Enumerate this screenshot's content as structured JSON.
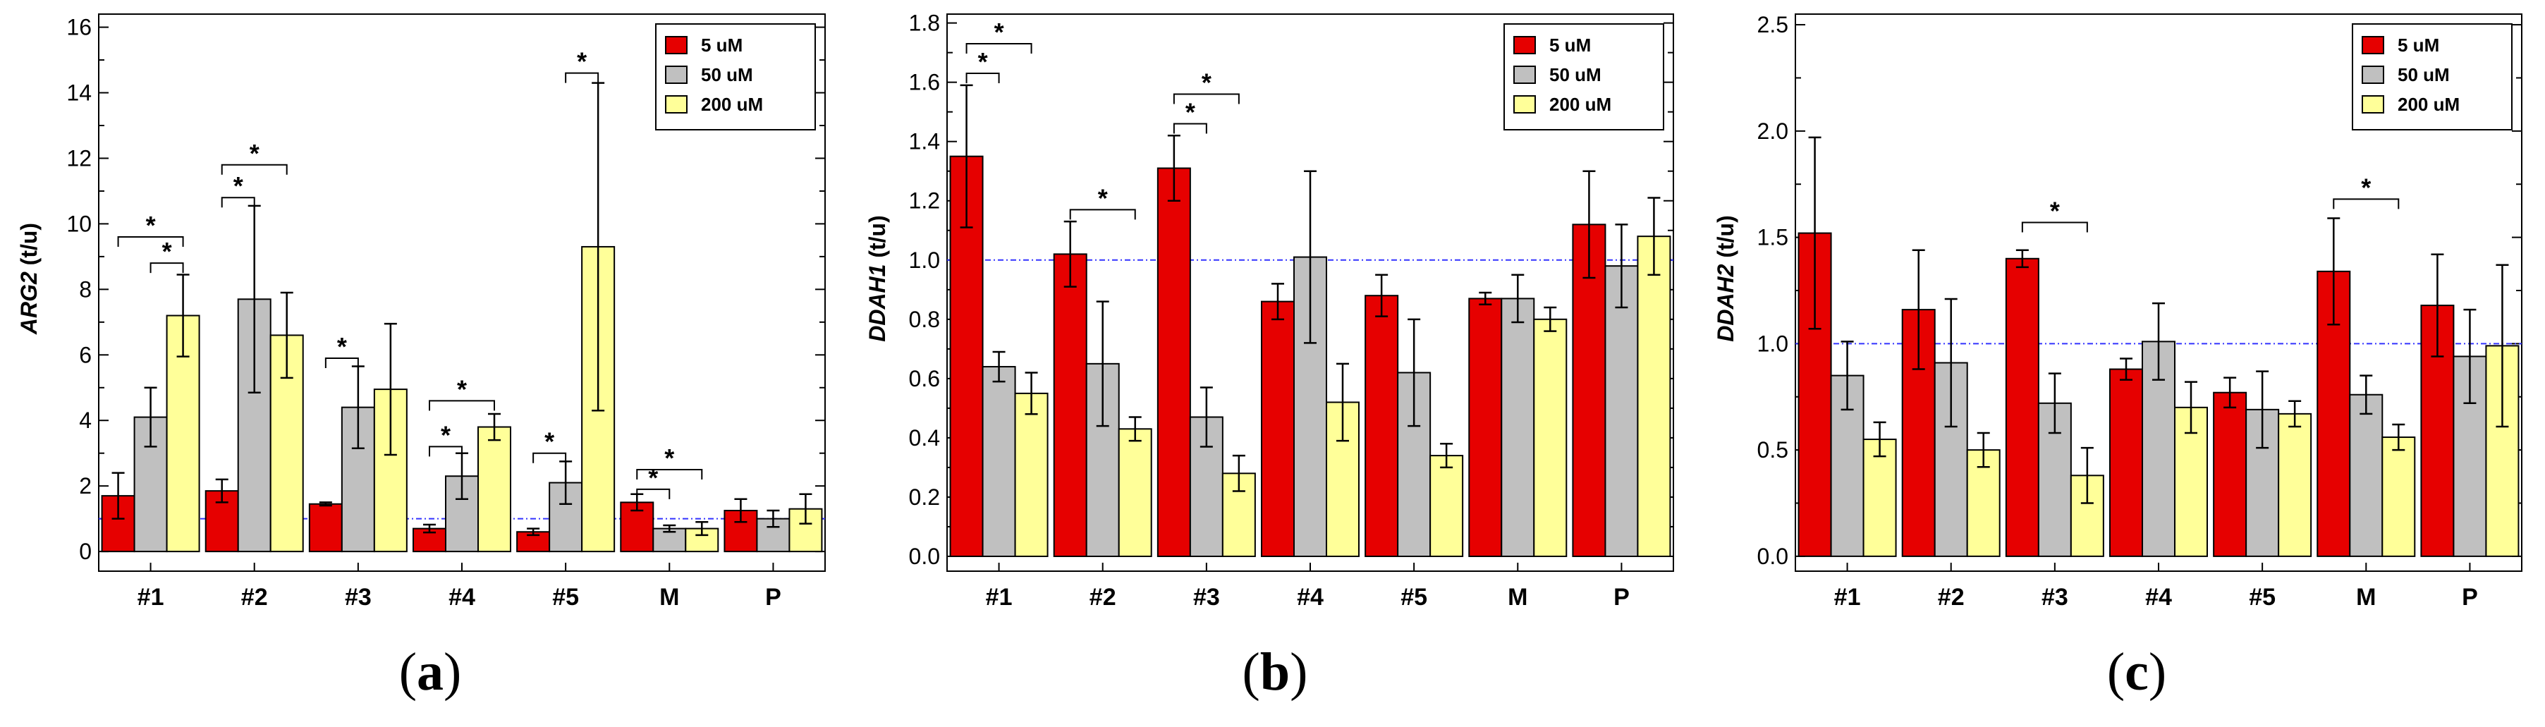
{
  "legend": [
    "5 uM",
    "50 uM",
    "200 uM"
  ],
  "colors": {
    "s5": "#e60000",
    "s50": "#c0c0c0",
    "s200": "#ffff99",
    "baseline": "#3333ff"
  },
  "significance_marker": "*",
  "chart_data": [
    {
      "panel": "a",
      "type": "bar",
      "ylabel": "ARG2",
      "ylabel_unit": "(t/u)",
      "ylim": [
        -0.6,
        16.4
      ],
      "yticks": [
        0,
        2,
        4,
        6,
        8,
        10,
        12,
        14,
        16
      ],
      "tick_decimals": 0,
      "baseline": 1.0,
      "legend_position": "top-right",
      "categories": [
        "#1",
        "#2",
        "#3",
        "#4",
        "#5",
        "M",
        "P"
      ],
      "series": [
        {
          "name": "5 uM",
          "values": [
            1.7,
            1.85,
            1.45,
            0.7,
            0.6,
            1.5,
            1.25
          ],
          "errors": [
            0.7,
            0.35,
            0.05,
            0.12,
            0.1,
            0.25,
            0.35
          ]
        },
        {
          "name": "50 uM",
          "values": [
            4.1,
            7.7,
            4.4,
            2.3,
            2.1,
            0.7,
            1.0
          ],
          "errors": [
            0.9,
            2.85,
            1.25,
            0.7,
            0.65,
            0.1,
            0.25
          ]
        },
        {
          "name": "200 uM",
          "values": [
            7.2,
            6.6,
            4.95,
            3.8,
            9.3,
            0.7,
            1.3
          ],
          "errors": [
            1.25,
            1.3,
            2.0,
            0.4,
            5.0,
            0.2,
            0.45
          ]
        }
      ],
      "significance": [
        {
          "category": 0,
          "from": 0,
          "to": 2,
          "y": 9.6
        },
        {
          "category": 0,
          "from": 1,
          "to": 2,
          "y": 8.8
        },
        {
          "category": 1,
          "from": 0,
          "to": 2,
          "y": 11.8
        },
        {
          "category": 1,
          "from": 0,
          "to": 1,
          "y": 10.8
        },
        {
          "category": 2,
          "from": 0,
          "to": 1,
          "y": 5.9
        },
        {
          "category": 3,
          "from": 0,
          "to": 2,
          "y": 4.6
        },
        {
          "category": 3,
          "from": 0,
          "to": 1,
          "y": 3.2
        },
        {
          "category": 4,
          "from": 0,
          "to": 1,
          "y": 3.0
        },
        {
          "category": 4,
          "from": 1,
          "to": 2,
          "y": 14.6
        },
        {
          "category": 5,
          "from": 0,
          "to": 2,
          "y": 2.5
        },
        {
          "category": 5,
          "from": 0,
          "to": 1,
          "y": 1.9
        }
      ]
    },
    {
      "panel": "b",
      "type": "bar",
      "ylabel": "DDAH1",
      "ylabel_unit": "(t/u)",
      "ylim": [
        -0.05,
        1.83
      ],
      "yticks": [
        0.0,
        0.2,
        0.4,
        0.6,
        0.8,
        1.0,
        1.2,
        1.4,
        1.6,
        1.8
      ],
      "tick_decimals": 1,
      "baseline": 1.0,
      "legend_position": "top-right",
      "categories": [
        "#1",
        "#2",
        "#3",
        "#4",
        "#5",
        "M",
        "P"
      ],
      "series": [
        {
          "name": "5 uM",
          "values": [
            1.35,
            1.02,
            1.31,
            0.86,
            0.88,
            0.87,
            1.12
          ],
          "errors": [
            0.24,
            0.11,
            0.11,
            0.06,
            0.07,
            0.02,
            0.18
          ]
        },
        {
          "name": "50 uM",
          "values": [
            0.64,
            0.65,
            0.47,
            1.01,
            0.62,
            0.87,
            0.98
          ],
          "errors": [
            0.05,
            0.21,
            0.1,
            0.29,
            0.18,
            0.08,
            0.14
          ]
        },
        {
          "name": "200 uM",
          "values": [
            0.55,
            0.43,
            0.28,
            0.52,
            0.34,
            0.8,
            1.08
          ],
          "errors": [
            0.07,
            0.04,
            0.06,
            0.13,
            0.04,
            0.04,
            0.13
          ]
        }
      ],
      "significance": [
        {
          "category": 0,
          "from": 0,
          "to": 2,
          "y": 1.73
        },
        {
          "category": 0,
          "from": 0,
          "to": 1,
          "y": 1.63
        },
        {
          "category": 1,
          "from": 0,
          "to": 2,
          "y": 1.17
        },
        {
          "category": 2,
          "from": 0,
          "to": 2,
          "y": 1.56
        },
        {
          "category": 2,
          "from": 0,
          "to": 1,
          "y": 1.46
        }
      ]
    },
    {
      "panel": "c",
      "type": "bar",
      "ylabel": "DDAH2",
      "ylabel_unit": "(t/u)",
      "ylim": [
        -0.07,
        2.55
      ],
      "yticks": [
        0.0,
        0.5,
        1.0,
        1.5,
        2.0,
        2.5
      ],
      "tick_decimals": 1,
      "baseline": 1.0,
      "legend_position": "top-right",
      "categories": [
        "#1",
        "#2",
        "#3",
        "#4",
        "#5",
        "M",
        "P"
      ],
      "series": [
        {
          "name": "5 uM",
          "values": [
            1.52,
            1.16,
            1.4,
            0.88,
            0.77,
            1.34,
            1.18
          ],
          "errors": [
            0.45,
            0.28,
            0.04,
            0.05,
            0.07,
            0.25,
            0.24
          ]
        },
        {
          "name": "50 uM",
          "values": [
            0.85,
            0.91,
            0.72,
            1.01,
            0.69,
            0.76,
            0.94
          ],
          "errors": [
            0.16,
            0.3,
            0.14,
            0.18,
            0.18,
            0.09,
            0.22
          ]
        },
        {
          "name": "200 uM",
          "values": [
            0.55,
            0.5,
            0.38,
            0.7,
            0.67,
            0.56,
            0.99
          ],
          "errors": [
            0.08,
            0.08,
            0.13,
            0.12,
            0.06,
            0.06,
            0.38
          ]
        }
      ],
      "significance": [
        {
          "category": 2,
          "from": 0,
          "to": 2,
          "y": 1.57
        },
        {
          "category": 5,
          "from": 0,
          "to": 2,
          "y": 1.68
        }
      ]
    }
  ]
}
